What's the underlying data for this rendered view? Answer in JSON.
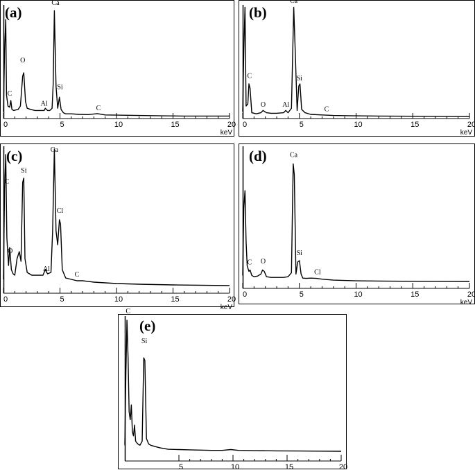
{
  "chart_data": [
    {
      "panel_label": "(a)",
      "type": "line",
      "xlabel": "keV",
      "xlim": [
        0,
        20
      ],
      "xticks": [
        "0",
        "5",
        "10",
        "15",
        "20"
      ],
      "ylim": [
        0,
        100
      ],
      "x": [
        0,
        0.1,
        0.2,
        0.27,
        0.4,
        0.55,
        0.65,
        0.75,
        0.9,
        1.1,
        1.3,
        1.5,
        1.7,
        1.8,
        1.95,
        2.1,
        2.4,
        2.8,
        3.2,
        3.6,
        3.7,
        3.9,
        4.1,
        4.3,
        4.4,
        4.5,
        4.65,
        4.8,
        4.95,
        5.1,
        5.3,
        5.5,
        6.0,
        6.7,
        7.5,
        8.3,
        9,
        10,
        12,
        14,
        16,
        18,
        20
      ],
      "values": [
        5,
        60,
        88,
        20,
        10,
        9,
        15,
        7,
        6,
        6.5,
        7,
        10,
        37,
        40,
        14,
        8,
        7,
        6,
        6,
        6,
        8,
        6,
        6,
        8,
        30,
        96,
        28,
        8,
        18,
        7,
        4,
        3,
        3,
        2.5,
        2.3,
        3.2,
        2,
        1.8,
        1.5,
        1.2,
        1,
        1,
        1
      ],
      "annotations": [
        {
          "text": "Ca",
          "x": 4.6,
          "y": 100
        },
        {
          "text": "O",
          "x": 1.7,
          "y": 48
        },
        {
          "text": "Si",
          "x": 5.0,
          "y": 24
        },
        {
          "text": "C",
          "x": 0.55,
          "y": 18
        },
        {
          "text": "Al",
          "x": 3.6,
          "y": 9
        },
        {
          "text": "C",
          "x": 8.4,
          "y": 5
        }
      ]
    },
    {
      "panel_label": "(b)",
      "type": "line",
      "xlabel": "keV",
      "xlim": [
        0,
        20
      ],
      "xticks": [
        "0",
        "5",
        "10",
        "15",
        "20"
      ],
      "ylim": [
        0,
        100
      ],
      "x": [
        0,
        0.1,
        0.2,
        0.3,
        0.45,
        0.55,
        0.65,
        0.8,
        1.2,
        1.6,
        1.8,
        2.1,
        2.5,
        3,
        3.6,
        3.8,
        4.0,
        4.3,
        4.5,
        4.65,
        4.8,
        4.95,
        5.05,
        5.2,
        5.5,
        6,
        7,
        8,
        10,
        12,
        15,
        20
      ],
      "values": [
        5,
        60,
        99,
        10,
        12,
        30,
        26,
        4,
        3,
        4,
        6,
        4,
        3.5,
        3.5,
        4,
        6,
        4,
        8,
        99,
        55,
        6,
        28,
        30,
        7,
        4,
        2.5,
        2,
        1.5,
        1.2,
        1,
        0.8,
        0.5
      ],
      "annotations": [
        {
          "text": "Ca",
          "x": 4.5,
          "y": 102
        },
        {
          "text": "C",
          "x": 0.6,
          "y": 34
        },
        {
          "text": "Si",
          "x": 5.0,
          "y": 32
        },
        {
          "text": "O",
          "x": 1.8,
          "y": 8
        },
        {
          "text": "Al",
          "x": 3.8,
          "y": 8
        },
        {
          "text": "C",
          "x": 7.4,
          "y": 4
        }
      ]
    },
    {
      "panel_label": "(c)",
      "type": "line",
      "xlabel": "keV",
      "xlim": [
        0,
        20
      ],
      "xticks": [
        "0",
        "5",
        "10",
        "15",
        "20"
      ],
      "ylim": [
        0,
        100
      ],
      "x": [
        0,
        0.1,
        0.2,
        0.3,
        0.45,
        0.55,
        0.7,
        0.85,
        1.0,
        1.2,
        1.4,
        1.55,
        1.7,
        1.8,
        1.9,
        2.1,
        2.5,
        3,
        3.5,
        3.7,
        3.9,
        4.2,
        4.35,
        4.5,
        4.65,
        4.8,
        4.95,
        5.05,
        5.2,
        5.5,
        6,
        6.5,
        7,
        8,
        10,
        12,
        15,
        20
      ],
      "values": [
        5,
        70,
        95,
        35,
        15,
        28,
        12,
        9,
        8,
        20,
        25,
        18,
        75,
        78,
        20,
        10,
        8,
        8,
        8,
        12,
        9,
        10,
        40,
        99,
        40,
        30,
        48,
        45,
        12,
        6,
        5,
        4,
        4,
        3,
        2,
        1.5,
        1,
        0.5
      ],
      "annotations": [
        {
          "text": "Ca",
          "x": 4.5,
          "y": 96
        },
        {
          "text": "C",
          "x": 0.3,
          "y": 73
        },
        {
          "text": "Si",
          "x": 1.8,
          "y": 81
        },
        {
          "text": "Cl",
          "x": 5.0,
          "y": 52
        },
        {
          "text": "O",
          "x": 0.6,
          "y": 23
        },
        {
          "text": "Al",
          "x": 3.8,
          "y": 10
        },
        {
          "text": "C",
          "x": 6.5,
          "y": 6
        }
      ]
    },
    {
      "panel_label": "(d)",
      "type": "line",
      "xlabel": "keV",
      "xlim": [
        0,
        20
      ],
      "xticks": [
        "0",
        "5",
        "10",
        "15",
        "20"
      ],
      "ylim": [
        0,
        100
      ],
      "x": [
        0,
        0.1,
        0.2,
        0.3,
        0.4,
        0.55,
        0.65,
        0.8,
        1.0,
        1.3,
        1.6,
        1.75,
        1.9,
        2.1,
        2.5,
        3,
        3.6,
        4.0,
        4.3,
        4.45,
        4.55,
        4.7,
        4.85,
        5.0,
        5.15,
        5.3,
        5.6,
        6,
        6.5,
        7,
        8,
        10,
        12,
        15,
        20
      ],
      "values": [
        5,
        55,
        68,
        30,
        12,
        8,
        9,
        5,
        4,
        4.5,
        6,
        9,
        8,
        4,
        3.5,
        3.5,
        3.5,
        4,
        7,
        88,
        80,
        6,
        15,
        16,
        6,
        3,
        2.8,
        3,
        2.8,
        2.2,
        1.5,
        1,
        0.8,
        0.6,
        0.5
      ],
      "annotations": [
        {
          "text": "Ca",
          "x": 4.5,
          "y": 92
        },
        {
          "text": "C",
          "x": 0.6,
          "y": 12
        },
        {
          "text": "O",
          "x": 1.8,
          "y": 13
        },
        {
          "text": "Si",
          "x": 5.0,
          "y": 19
        },
        {
          "text": "Cl",
          "x": 6.6,
          "y": 5
        }
      ]
    },
    {
      "panel_label": "(e)",
      "type": "line",
      "xlabel": "",
      "xlim": [
        0,
        20
      ],
      "xticks": [
        "5",
        "10",
        "15",
        "20"
      ],
      "ylim": [
        0,
        100
      ],
      "x": [
        0,
        0.1,
        0.2,
        0.3,
        0.4,
        0.5,
        0.6,
        0.7,
        0.8,
        0.9,
        1.0,
        1.2,
        1.4,
        1.6,
        1.75,
        1.85,
        2.0,
        2.2,
        2.4,
        2.8,
        3.3,
        4,
        5,
        6,
        7,
        8,
        9,
        9.8,
        10.5,
        12,
        14,
        16,
        18,
        20
      ],
      "values": [
        5,
        60,
        98,
        70,
        30,
        24,
        35,
        15,
        12,
        20,
        8,
        6,
        5,
        8,
        70,
        68,
        10,
        6,
        5,
        4,
        3,
        2,
        1.8,
        1.6,
        1.4,
        1.2,
        1.2,
        1.8,
        1.2,
        1,
        0.8,
        0.7,
        0.6,
        0.5
      ],
      "annotations": [
        {
          "text": "C",
          "x": 0.3,
          "y": 102
        },
        {
          "text": "Si",
          "x": 1.8,
          "y": 80
        }
      ]
    }
  ]
}
